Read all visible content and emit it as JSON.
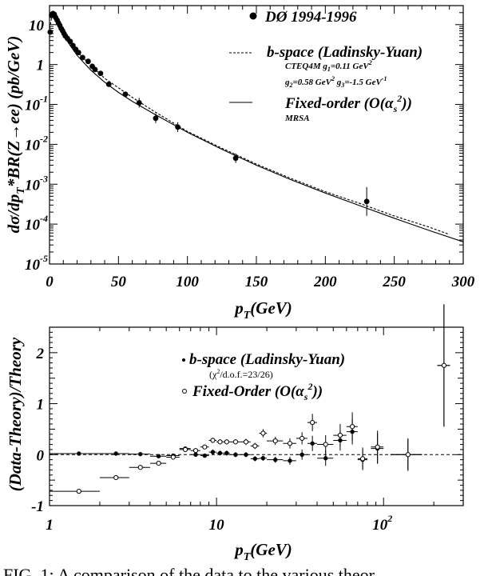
{
  "chart_data": [
    {
      "type": "scatter",
      "panel": "top",
      "xlabel": "p_T(GeV)",
      "ylabel": "dσ/dp_T*BR(Z→ee) (pb/GeV)",
      "xlim": [
        0,
        300
      ],
      "ylim": [
        1e-05,
        25
      ],
      "yscale": "log",
      "x_ticks": [
        "0",
        "50",
        "100",
        "150",
        "200",
        "250",
        "300"
      ],
      "y_ticks": [
        {
          "mantissa": "10",
          "exp": ""
        },
        {
          "mantissa": "1",
          "exp": ""
        },
        {
          "mantissa": "10",
          "exp": "-1"
        },
        {
          "mantissa": "10",
          "exp": "-2"
        },
        {
          "mantissa": "10",
          "exp": "-3"
        },
        {
          "mantissa": "10",
          "exp": "-4"
        },
        {
          "mantissa": "10",
          "exp": "-5"
        }
      ],
      "series": [
        {
          "name": "DØ 1994-1996",
          "style": "points",
          "points": [
            [
              0.5,
              6.5
            ],
            [
              1.5,
              17
            ],
            [
              2.5,
              19
            ],
            [
              3.5,
              18
            ],
            [
              4.5,
              15
            ],
            [
              5.5,
              13
            ],
            [
              6.5,
              11
            ],
            [
              7.5,
              9.5
            ],
            [
              8.5,
              8
            ],
            [
              9.5,
              7
            ],
            [
              10.5,
              6
            ],
            [
              11.5,
              5.2
            ],
            [
              13,
              4.5
            ],
            [
              15,
              3.8
            ],
            [
              17,
              3.0
            ],
            [
              19,
              2.4
            ],
            [
              21,
              2.0
            ],
            [
              24,
              1.5
            ],
            [
              28,
              1.2
            ],
            [
              31,
              0.9
            ],
            [
              33,
              0.75
            ],
            [
              37,
              0.6
            ],
            [
              43,
              0.32
            ],
            [
              55,
              0.18
            ],
            [
              65,
              0.11
            ],
            [
              77,
              0.045
            ],
            [
              93,
              0.027
            ],
            [
              135,
              0.0045
            ],
            [
              230,
              0.00037
            ]
          ]
        },
        {
          "name": "b-space (Ladinsky-Yuan)",
          "style": "dashed",
          "points": [
            [
              0.2,
              8
            ],
            [
              2,
              19
            ],
            [
              4,
              17
            ],
            [
              6,
              12.5
            ],
            [
              8,
              9
            ],
            [
              10,
              7
            ],
            [
              12,
              5.5
            ],
            [
              15,
              3.7
            ],
            [
              20,
              2.1
            ],
            [
              25,
              1.4
            ],
            [
              30,
              0.95
            ],
            [
              40,
              0.45
            ],
            [
              50,
              0.26
            ],
            [
              60,
              0.15
            ],
            [
              75,
              0.07
            ],
            [
              90,
              0.034
            ],
            [
              100,
              0.021
            ],
            [
              125,
              0.008
            ],
            [
              150,
              0.0032
            ],
            [
              175,
              0.0014
            ],
            [
              200,
              0.00065
            ],
            [
              225,
              0.00033
            ],
            [
              250,
              0.00016
            ],
            [
              275,
              8.5e-05
            ],
            [
              290,
              5.5e-05
            ]
          ]
        },
        {
          "name": "Fixed-order (O(α_s^2))",
          "style": "solid",
          "points": [
            [
              1.5,
              20
            ],
            [
              3,
              16
            ],
            [
              5,
              11
            ],
            [
              7.5,
              7.5
            ],
            [
              10,
              5.5
            ],
            [
              15,
              3
            ],
            [
              20,
              1.7
            ],
            [
              25,
              1.1
            ],
            [
              30,
              0.72
            ],
            [
              40,
              0.36
            ],
            [
              50,
              0.2
            ],
            [
              60,
              0.12
            ],
            [
              75,
              0.06
            ],
            [
              90,
              0.031
            ],
            [
              100,
              0.02
            ],
            [
              125,
              0.0075
            ],
            [
              150,
              0.003
            ],
            [
              175,
              0.0013
            ],
            [
              200,
              0.0006
            ],
            [
              225,
              0.00029
            ],
            [
              250,
              0.00014
            ],
            [
              275,
              7e-05
            ],
            [
              300,
              3.6e-05
            ]
          ]
        }
      ],
      "legend": {
        "data_label": "DØ 1994-1996",
        "bspace_label": "b-space (Ladinsky-Yuan)",
        "bspace_note1": "CTEQ4M g",
        "bspace_note1_sub": "1",
        "bspace_note1_rest": "=0.11 GeV",
        "bspace_note1_sup": "2",
        "bspace_note2a": "g",
        "bspace_note2a_sub": "2",
        "bspace_note2b": "=0.58 GeV",
        "bspace_note2b_sup": "2",
        "bspace_note2c": " g",
        "bspace_note2c_sub": "3",
        "bspace_note2d": "=-1.5 GeV",
        "bspace_note2d_sup": "-1",
        "fixed_label": "Fixed-order (O(α",
        "fixed_sub": "s",
        "fixed_sup": "2",
        "fixed_close": "))",
        "fixed_note": "MRSA"
      }
    },
    {
      "type": "scatter",
      "panel": "bottom",
      "xlabel": "p_T(GeV)",
      "ylabel": "(Data-Theory)/Theory",
      "xlim": [
        1,
        300
      ],
      "xscale": "log",
      "ylim": [
        -1,
        2.5
      ],
      "x_ticks": [
        {
          "mantissa": "1",
          "exp": ""
        },
        {
          "mantissa": "10",
          "exp": ""
        },
        {
          "mantissa": "10",
          "exp": "2"
        }
      ],
      "y_ticks": [
        "-1",
        "0",
        "1",
        "2"
      ],
      "series": [
        {
          "name": "b-space (Ladinsky-Yuan)",
          "marker": "filled",
          "points": [
            [
              1.5,
              0.02,
              0.01,
              0.5
            ],
            [
              2.5,
              0.02,
              0.01,
              0.5
            ],
            [
              3.5,
              0.01,
              0.01,
              0.5
            ],
            [
              4.5,
              -0.03,
              0.01,
              0.5
            ],
            [
              5.5,
              -0.02,
              0.01,
              0.5
            ],
            [
              6.5,
              0.12,
              0.03,
              0.5
            ],
            [
              7.5,
              0.0,
              0.03,
              0.5
            ],
            [
              8.5,
              -0.02,
              0.03,
              0.5
            ],
            [
              9.5,
              0.05,
              0.05,
              0.5
            ],
            [
              10.5,
              0.03,
              0.05,
              0.5
            ],
            [
              11.5,
              0.03,
              0.05,
              0.5
            ],
            [
              13,
              0.0,
              0.05,
              1
            ],
            [
              15,
              0.0,
              0.05,
              1
            ],
            [
              17,
              -0.08,
              0.05,
              1
            ],
            [
              19,
              -0.07,
              0.05,
              1
            ],
            [
              22.5,
              -0.1,
              0.06,
              2.5
            ],
            [
              27.5,
              -0.12,
              0.08,
              2.5
            ],
            [
              32.5,
              0.0,
              0.1,
              2.5
            ],
            [
              37.5,
              0.22,
              0.15,
              2.5
            ],
            [
              45,
              -0.07,
              0.15,
              5
            ],
            [
              55,
              0.28,
              0.2,
              5
            ],
            [
              65,
              0.45,
              0.25,
              5
            ],
            [
              75,
              -0.1,
              0.2,
              5
            ],
            [
              92,
              0.12,
              0.3,
              8
            ],
            [
              140,
              0.0,
              0.3,
              30
            ],
            [
              230,
              1.75,
              1.2,
              20
            ]
          ]
        },
        {
          "name": "Fixed-Order (O(α_s^2))",
          "marker": "open",
          "points": [
            [
              1.5,
              -0.72,
              0.01,
              0.5
            ],
            [
              2.5,
              -0.45,
              0.01,
              0.5
            ],
            [
              3.5,
              -0.25,
              0.01,
              0.5
            ],
            [
              4.5,
              -0.17,
              0.01,
              0.5
            ],
            [
              5.5,
              -0.05,
              0.02,
              0.5
            ],
            [
              6.5,
              0.1,
              0.03,
              0.5
            ],
            [
              7.5,
              0.08,
              0.03,
              0.5
            ],
            [
              8.5,
              0.15,
              0.03,
              0.5
            ],
            [
              9.5,
              0.28,
              0.05,
              0.5
            ],
            [
              10.5,
              0.25,
              0.05,
              0.5
            ],
            [
              11.5,
              0.25,
              0.05,
              0.5
            ],
            [
              13,
              0.25,
              0.05,
              1
            ],
            [
              15,
              0.25,
              0.06,
              1
            ],
            [
              17,
              0.17,
              0.06,
              1
            ],
            [
              19,
              0.42,
              0.08,
              1
            ],
            [
              22.5,
              0.27,
              0.08,
              2.5
            ],
            [
              27.5,
              0.22,
              0.1,
              2.5
            ],
            [
              32.5,
              0.32,
              0.12,
              2.5
            ],
            [
              37.5,
              0.63,
              0.17,
              2.5
            ],
            [
              45,
              0.2,
              0.18,
              5
            ],
            [
              55,
              0.38,
              0.22,
              5
            ],
            [
              65,
              0.55,
              0.28,
              5
            ],
            [
              75,
              -0.08,
              0.22,
              5
            ],
            [
              92,
              0.15,
              0.32,
              8
            ],
            [
              140,
              0.0,
              0.32,
              30
            ],
            [
              230,
              1.75,
              1.2,
              20
            ]
          ]
        }
      ],
      "legend": {
        "bspace_label": "b-space (Ladinsky-Yuan)",
        "chi2_a": "(χ",
        "chi2_sup": "2",
        "chi2_b": "/d.o.f.=23/26)",
        "fixed_label": "Fixed-Order (O(α",
        "fixed_sub": "s",
        "fixed_sup": "2",
        "fixed_close": "))"
      }
    }
  ],
  "caption_fragment": "FIG. 1: A comparison of the data to the various theor"
}
